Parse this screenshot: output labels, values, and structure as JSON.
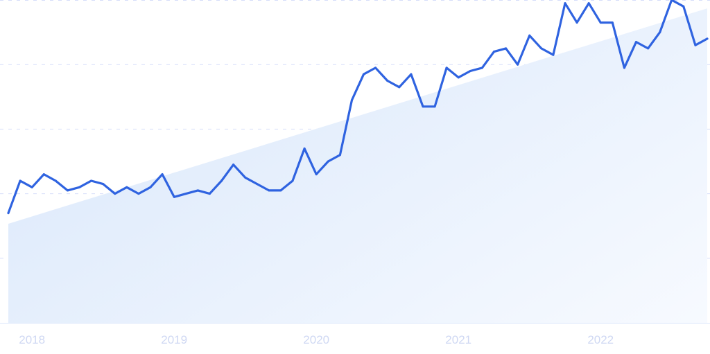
{
  "chart_data": {
    "type": "line",
    "title": "",
    "xlabel": "",
    "ylabel": "",
    "x": [
      "2017-11",
      "2017-12",
      "2018-01",
      "2018-02",
      "2018-03",
      "2018-04",
      "2018-05",
      "2018-06",
      "2018-07",
      "2018-08",
      "2018-09",
      "2018-10",
      "2018-11",
      "2018-12",
      "2019-01",
      "2019-02",
      "2019-03",
      "2019-04",
      "2019-05",
      "2019-06",
      "2019-07",
      "2019-08",
      "2019-09",
      "2019-10",
      "2019-11",
      "2019-12",
      "2020-01",
      "2020-02",
      "2020-03",
      "2020-04",
      "2020-05",
      "2020-06",
      "2020-07",
      "2020-08",
      "2020-09",
      "2020-10",
      "2020-11",
      "2020-12",
      "2021-01",
      "2021-02",
      "2021-03",
      "2021-04",
      "2021-05",
      "2021-06",
      "2021-07",
      "2021-08",
      "2021-09",
      "2021-10",
      "2021-11",
      "2021-12",
      "2022-01",
      "2022-02",
      "2022-03",
      "2022-04",
      "2022-05",
      "2022-06",
      "2022-07",
      "2022-08",
      "2022-09",
      "2022-10"
    ],
    "series": [
      {
        "values": [
          34,
          44,
          42,
          46,
          44,
          41,
          42,
          44,
          43,
          40,
          42,
          40,
          42,
          46,
          39,
          40,
          41,
          40,
          44,
          49,
          45,
          43,
          41,
          41,
          44,
          54,
          46,
          50,
          52,
          69,
          77,
          79,
          75,
          73,
          77,
          67,
          67,
          79,
          76,
          78,
          79,
          84,
          85,
          80,
          89,
          85,
          83,
          99,
          93,
          99,
          93,
          93,
          79,
          87,
          85,
          90,
          100,
          98,
          86,
          88
        ]
      }
    ],
    "trend": {
      "start": 30.7,
      "end": 97.4
    },
    "x_tick_labels": [
      "2018",
      "2019",
      "2020",
      "2021",
      "2022"
    ],
    "x_tick_positions": [
      "2018-01",
      "2019-01",
      "2020-01",
      "2021-01",
      "2022-01"
    ],
    "ylim": [
      0,
      100
    ],
    "y_gridlines": [
      0,
      20,
      40,
      60,
      80,
      100
    ],
    "y_tick_labels_shown": false,
    "grid": true,
    "legend": "none",
    "colors": {
      "line": "#2f63e0",
      "trend_fill_start": "#dce9fb",
      "trend_fill_end": "#f7faff",
      "grid": "#d6defa",
      "tick_label": "#cfd8f3"
    }
  }
}
